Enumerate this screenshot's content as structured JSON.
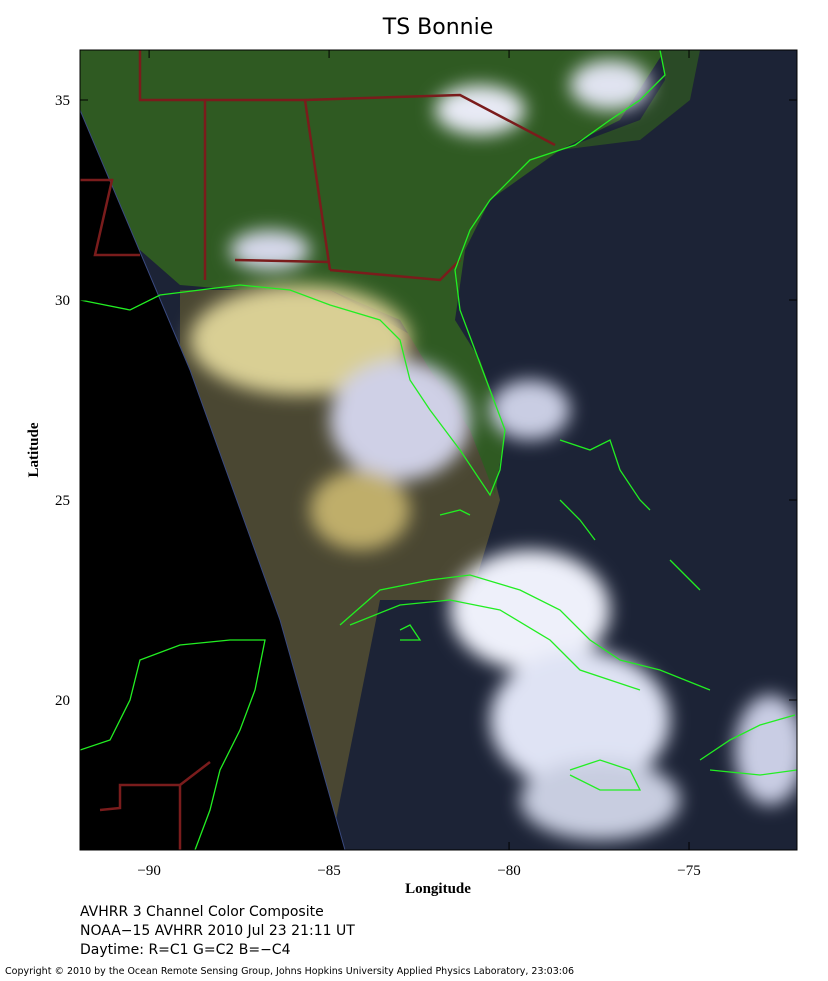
{
  "title": "TS Bonnie",
  "axes": {
    "xlabel": "Longitude",
    "ylabel": "Latitude",
    "xlim": [
      -91.92,
      -72
    ],
    "ylim": [
      16.25,
      36.25
    ],
    "xticks": [
      {
        "value": -90,
        "label": "−90"
      },
      {
        "value": -85,
        "label": "−85"
      },
      {
        "value": -80,
        "label": "−80"
      },
      {
        "value": -75,
        "label": "−75"
      }
    ],
    "yticks": [
      20,
      25,
      30,
      35
    ]
  },
  "caption": [
    "AVHRR 3 Channel Color Composite",
    "NOAA−15 AVHRR 2010 Jul 23 21:11 UT",
    "Daytime: R=C1 G=C2 B=−C4"
  ],
  "copyright": "Copyright © 2010 by the Ocean Remote Sensing Group, Johns Hopkins University Applied Physics Laboratory, 23:03:06"
}
